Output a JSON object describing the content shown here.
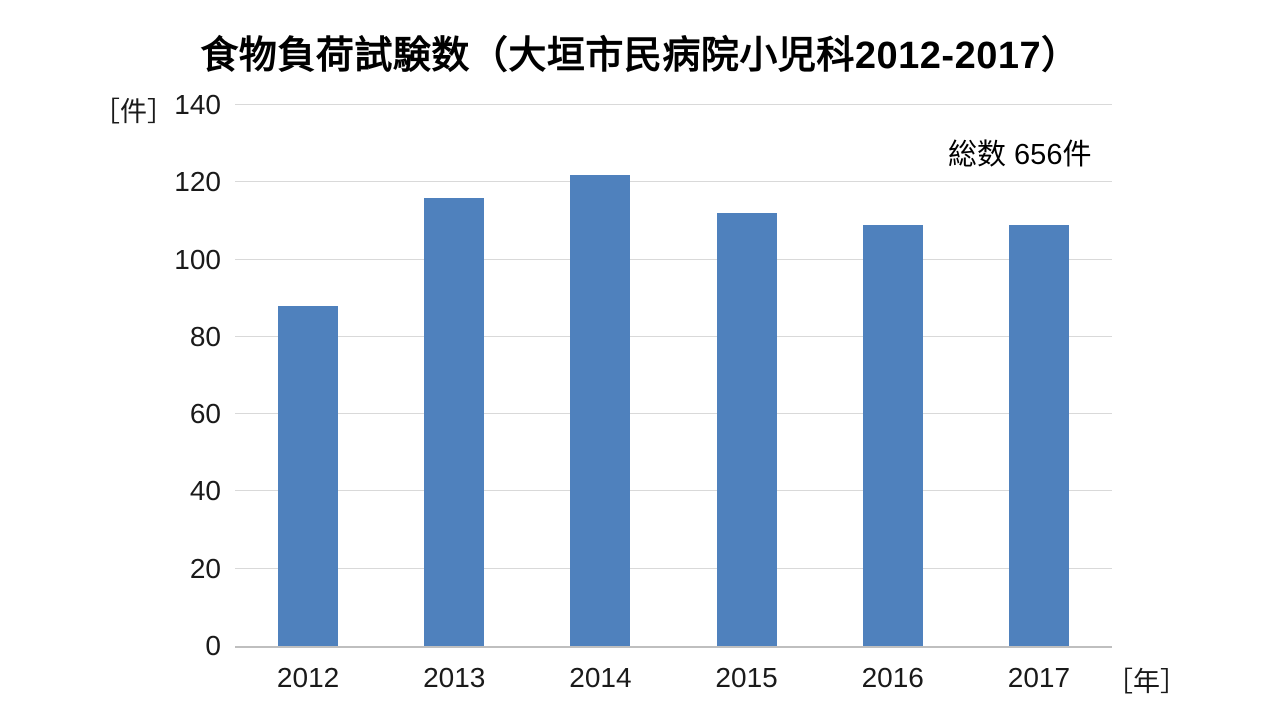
{
  "title": "食物負荷試験数（大垣市民病院小児科2012-2017）",
  "annotation": "総数  656件",
  "y_axis_unit": "［件］",
  "x_axis_unit": "［年］",
  "colors": {
    "bar": "#4f81bd",
    "gridline": "#d9d9d9",
    "axis_line": "#bfbfbf",
    "text": "#1a1a1a",
    "background": "#ffffff"
  },
  "chart_data": {
    "type": "bar",
    "categories": [
      "2012",
      "2013",
      "2014",
      "2015",
      "2016",
      "2017"
    ],
    "values": [
      88,
      116,
      122,
      112,
      109,
      109
    ],
    "title": "食物負荷試験数（大垣市民病院小児科2012-2017）",
    "xlabel": "［年］",
    "ylabel": "［件］",
    "ylim": [
      0,
      140
    ],
    "ytick_step": 20,
    "grid": true,
    "legend": "none",
    "annotation": "総数  656件",
    "total": 656
  }
}
